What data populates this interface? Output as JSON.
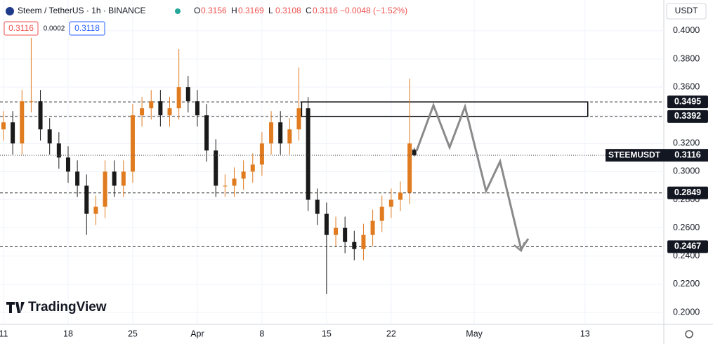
{
  "header": {
    "symbol": "Steem / TetherUS · 1h · BINANCE",
    "ohlc": [
      {
        "label": "O",
        "value": "0.3156"
      },
      {
        "label": "H",
        "value": "0.3169"
      },
      {
        "label": "L",
        "value": "0.3108"
      },
      {
        "label": "C",
        "value": "0.3116"
      }
    ],
    "change": "−0.0048 (−1.52%)",
    "bid": "0.3116",
    "spread": "0.0002",
    "ask": "0.3118",
    "currency": "USDT",
    "watermark": "TradingView"
  },
  "chart_data": {
    "type": "candlestick",
    "x": [
      0,
      1,
      2,
      3,
      4,
      5,
      6,
      7,
      8,
      9,
      10,
      11,
      12,
      13,
      14,
      15,
      16,
      17,
      18,
      19,
      20,
      21,
      22,
      23,
      24,
      25,
      26,
      27,
      28,
      29,
      30,
      31,
      32,
      33,
      34,
      35,
      36,
      37,
      38,
      39,
      40,
      41,
      42,
      43,
      44,
      44.5
    ],
    "open": [
      0.33,
      0.335,
      0.32,
      0.35,
      0.35,
      0.33,
      0.32,
      0.31,
      0.3,
      0.29,
      0.27,
      0.275,
      0.3,
      0.29,
      0.3,
      0.34,
      0.345,
      0.35,
      0.34,
      0.345,
      0.36,
      0.35,
      0.34,
      0.315,
      0.29,
      0.29,
      0.295,
      0.3,
      0.305,
      0.32,
      0.335,
      0.32,
      0.33,
      0.345,
      0.28,
      0.27,
      0.255,
      0.26,
      0.25,
      0.245,
      0.255,
      0.265,
      0.275,
      0.28,
      0.285,
      0.3156
    ],
    "high": [
      0.343,
      0.343,
      0.358,
      0.395,
      0.358,
      0.338,
      0.328,
      0.318,
      0.308,
      0.298,
      0.283,
      0.308,
      0.308,
      0.308,
      0.348,
      0.353,
      0.358,
      0.358,
      0.353,
      0.387,
      0.368,
      0.358,
      0.348,
      0.323,
      0.298,
      0.303,
      0.308,
      0.313,
      0.328,
      0.343,
      0.343,
      0.338,
      0.374,
      0.353,
      0.288,
      0.278,
      0.268,
      0.268,
      0.258,
      0.263,
      0.273,
      0.283,
      0.288,
      0.293,
      0.366,
      0.3169
    ],
    "low": [
      0.322,
      0.312,
      0.312,
      0.342,
      0.322,
      0.312,
      0.302,
      0.292,
      0.282,
      0.255,
      0.262,
      0.267,
      0.282,
      0.282,
      0.292,
      0.332,
      0.337,
      0.332,
      0.332,
      0.337,
      0.342,
      0.332,
      0.307,
      0.282,
      0.282,
      0.282,
      0.287,
      0.292,
      0.297,
      0.312,
      0.312,
      0.312,
      0.322,
      0.272,
      0.262,
      0.213,
      0.247,
      0.242,
      0.237,
      0.237,
      0.247,
      0.257,
      0.267,
      0.272,
      0.277,
      0.3108
    ],
    "close": [
      0.335,
      0.32,
      0.35,
      0.35,
      0.33,
      0.32,
      0.31,
      0.3,
      0.29,
      0.27,
      0.275,
      0.3,
      0.29,
      0.3,
      0.34,
      0.345,
      0.35,
      0.34,
      0.345,
      0.36,
      0.35,
      0.34,
      0.315,
      0.29,
      0.29,
      0.295,
      0.3,
      0.305,
      0.32,
      0.335,
      0.32,
      0.33,
      0.345,
      0.28,
      0.27,
      0.255,
      0.26,
      0.25,
      0.245,
      0.255,
      0.265,
      0.275,
      0.28,
      0.285,
      0.32,
      0.3116
    ],
    "up_color": "#e07b20",
    "down_color": "#1a1a1a",
    "xlim": [
      -0.38,
      71.54
    ],
    "ylim": [
      0.1915,
      0.4219
    ],
    "xticks": [
      {
        "value": 0,
        "label": "11"
      },
      {
        "value": 7,
        "label": "18"
      },
      {
        "value": 14,
        "label": "25"
      },
      {
        "value": 21,
        "label": "Apr"
      },
      {
        "value": 28,
        "label": "8"
      },
      {
        "value": 35,
        "label": "15"
      },
      {
        "value": 42,
        "label": "22"
      },
      {
        "value": 51,
        "label": "May"
      },
      {
        "value": 63,
        "label": "13"
      }
    ],
    "yticks": [
      {
        "value": 0.2,
        "label": "0.2000"
      },
      {
        "value": 0.22,
        "label": "0.2200"
      },
      {
        "value": 0.24,
        "label": "0.2400"
      },
      {
        "value": 0.26,
        "label": "0.2600"
      },
      {
        "value": 0.28,
        "label": "0.2800"
      },
      {
        "value": 0.3,
        "label": "0.3000"
      },
      {
        "value": 0.32,
        "label": "0.3200"
      },
      {
        "value": 0.34,
        "label": "0.3400"
      },
      {
        "value": 0.36,
        "label": "0.3600"
      },
      {
        "value": 0.38,
        "label": "0.3800"
      },
      {
        "value": 0.4,
        "label": "0.4000"
      }
    ],
    "grid": true,
    "levels": {
      "values": [
        0.3495,
        0.3392,
        0.2849,
        0.2467
      ],
      "value_labels": [
        "0.3495",
        "0.3392",
        "0.2849",
        "0.2467"
      ]
    },
    "last_price": {
      "name": "STEEMUSDT",
      "value": 0.3116,
      "value_label": "0.3116"
    },
    "zone": {
      "x": [
        32.3,
        63.3
      ],
      "y": [
        0.3392,
        0.3495
      ]
    },
    "projection": {
      "x": [
        44.75,
        46.58,
        48.33,
        50.0,
        52.28,
        53.8,
        56.08,
        56.85
      ],
      "y": [
        0.3147,
        0.3471,
        0.3172,
        0.3461,
        0.2862,
        0.3072,
        0.2448,
        0.2523
      ],
      "color": "#8a8a8a"
    }
  }
}
